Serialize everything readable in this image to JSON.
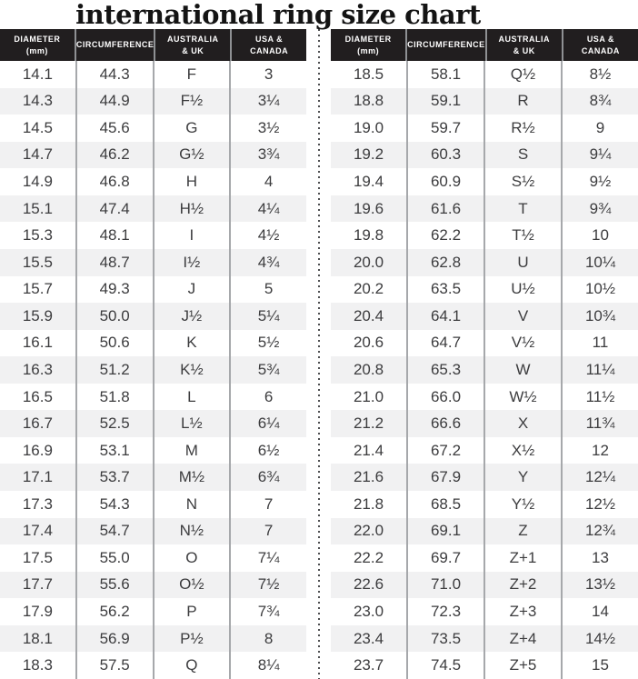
{
  "title": "international ring size chart",
  "table_headers": [
    {
      "line1": "DIAMETER",
      "line2": "(mm)"
    },
    {
      "line1": "CIRCUMFERENCE",
      "line2": ""
    },
    {
      "line1": "AUSTRALIA",
      "line2": "& UK"
    },
    {
      "line1": "USA &",
      "line2": "CANADA"
    }
  ],
  "colors": {
    "header_bg": "#211e1f",
    "header_text": "#ffffff",
    "row_bg": "#ffffff",
    "row_alt_bg": "#f1f1f2",
    "body_text": "#3c3c3e",
    "column_separator": "#a6a8ab",
    "divider_dots": "#4c4d4f",
    "title_text": "#141414"
  },
  "chart_data": {
    "type": "table",
    "title": "international ring size chart",
    "columns": [
      "Diameter (mm)",
      "Circumference",
      "Australia & UK",
      "USA & Canada"
    ],
    "layout": "two side-by-side tables separated by a vertical dotted divider",
    "tables": [
      {
        "name": "left",
        "rows": [
          [
            "14.1",
            "44.3",
            "F",
            "3"
          ],
          [
            "14.3",
            "44.9",
            "F½",
            "3¼"
          ],
          [
            "14.5",
            "45.6",
            "G",
            "3½"
          ],
          [
            "14.7",
            "46.2",
            "G½",
            "3¾"
          ],
          [
            "14.9",
            "46.8",
            "H",
            "4"
          ],
          [
            "15.1",
            "47.4",
            "H½",
            "4¼"
          ],
          [
            "15.3",
            "48.1",
            "I",
            "4½"
          ],
          [
            "15.5",
            "48.7",
            "I½",
            "4¾"
          ],
          [
            "15.7",
            "49.3",
            "J",
            "5"
          ],
          [
            "15.9",
            "50.0",
            "J½",
            "5¼"
          ],
          [
            "16.1",
            "50.6",
            "K",
            "5½"
          ],
          [
            "16.3",
            "51.2",
            "K½",
            "5¾"
          ],
          [
            "16.5",
            "51.8",
            "L",
            "6"
          ],
          [
            "16.7",
            "52.5",
            "L½",
            "6¼"
          ],
          [
            "16.9",
            "53.1",
            "M",
            "6½"
          ],
          [
            "17.1",
            "53.7",
            "M½",
            "6¾"
          ],
          [
            "17.3",
            "54.3",
            "N",
            "7"
          ],
          [
            "17.4",
            "54.7",
            "N½",
            "7"
          ],
          [
            "17.5",
            "55.0",
            "O",
            "7¼"
          ],
          [
            "17.7",
            "55.6",
            "O½",
            "7½"
          ],
          [
            "17.9",
            "56.2",
            "P",
            "7¾"
          ],
          [
            "18.1",
            "56.9",
            "P½",
            "8"
          ],
          [
            "18.3",
            "57.5",
            "Q",
            "8¼"
          ]
        ]
      },
      {
        "name": "right",
        "rows": [
          [
            "18.5",
            "58.1",
            "Q½",
            "8½"
          ],
          [
            "18.8",
            "59.1",
            "R",
            "8¾"
          ],
          [
            "19.0",
            "59.7",
            "R½",
            "9"
          ],
          [
            "19.2",
            "60.3",
            "S",
            "9¼"
          ],
          [
            "19.4",
            "60.9",
            "S½",
            "9½"
          ],
          [
            "19.6",
            "61.6",
            "T",
            "9¾"
          ],
          [
            "19.8",
            "62.2",
            "T½",
            "10"
          ],
          [
            "20.0",
            "62.8",
            "U",
            "10¼"
          ],
          [
            "20.2",
            "63.5",
            "U½",
            "10½"
          ],
          [
            "20.4",
            "64.1",
            "V",
            "10¾"
          ],
          [
            "20.6",
            "64.7",
            "V½",
            "11"
          ],
          [
            "20.8",
            "65.3",
            "W",
            "11¼"
          ],
          [
            "21.0",
            "66.0",
            "W½",
            "11½"
          ],
          [
            "21.2",
            "66.6",
            "X",
            "11¾"
          ],
          [
            "21.4",
            "67.2",
            "X½",
            "12"
          ],
          [
            "21.6",
            "67.9",
            "Y",
            "12¼"
          ],
          [
            "21.8",
            "68.5",
            "Y½",
            "12½"
          ],
          [
            "22.0",
            "69.1",
            "Z",
            "12¾"
          ],
          [
            "22.2",
            "69.7",
            "Z+1",
            "13"
          ],
          [
            "22.6",
            "71.0",
            "Z+2",
            "13½"
          ],
          [
            "23.0",
            "72.3",
            "Z+3",
            "14"
          ],
          [
            "23.4",
            "73.5",
            "Z+4",
            "14½"
          ],
          [
            "23.7",
            "74.5",
            "Z+5",
            "15"
          ]
        ]
      }
    ]
  }
}
